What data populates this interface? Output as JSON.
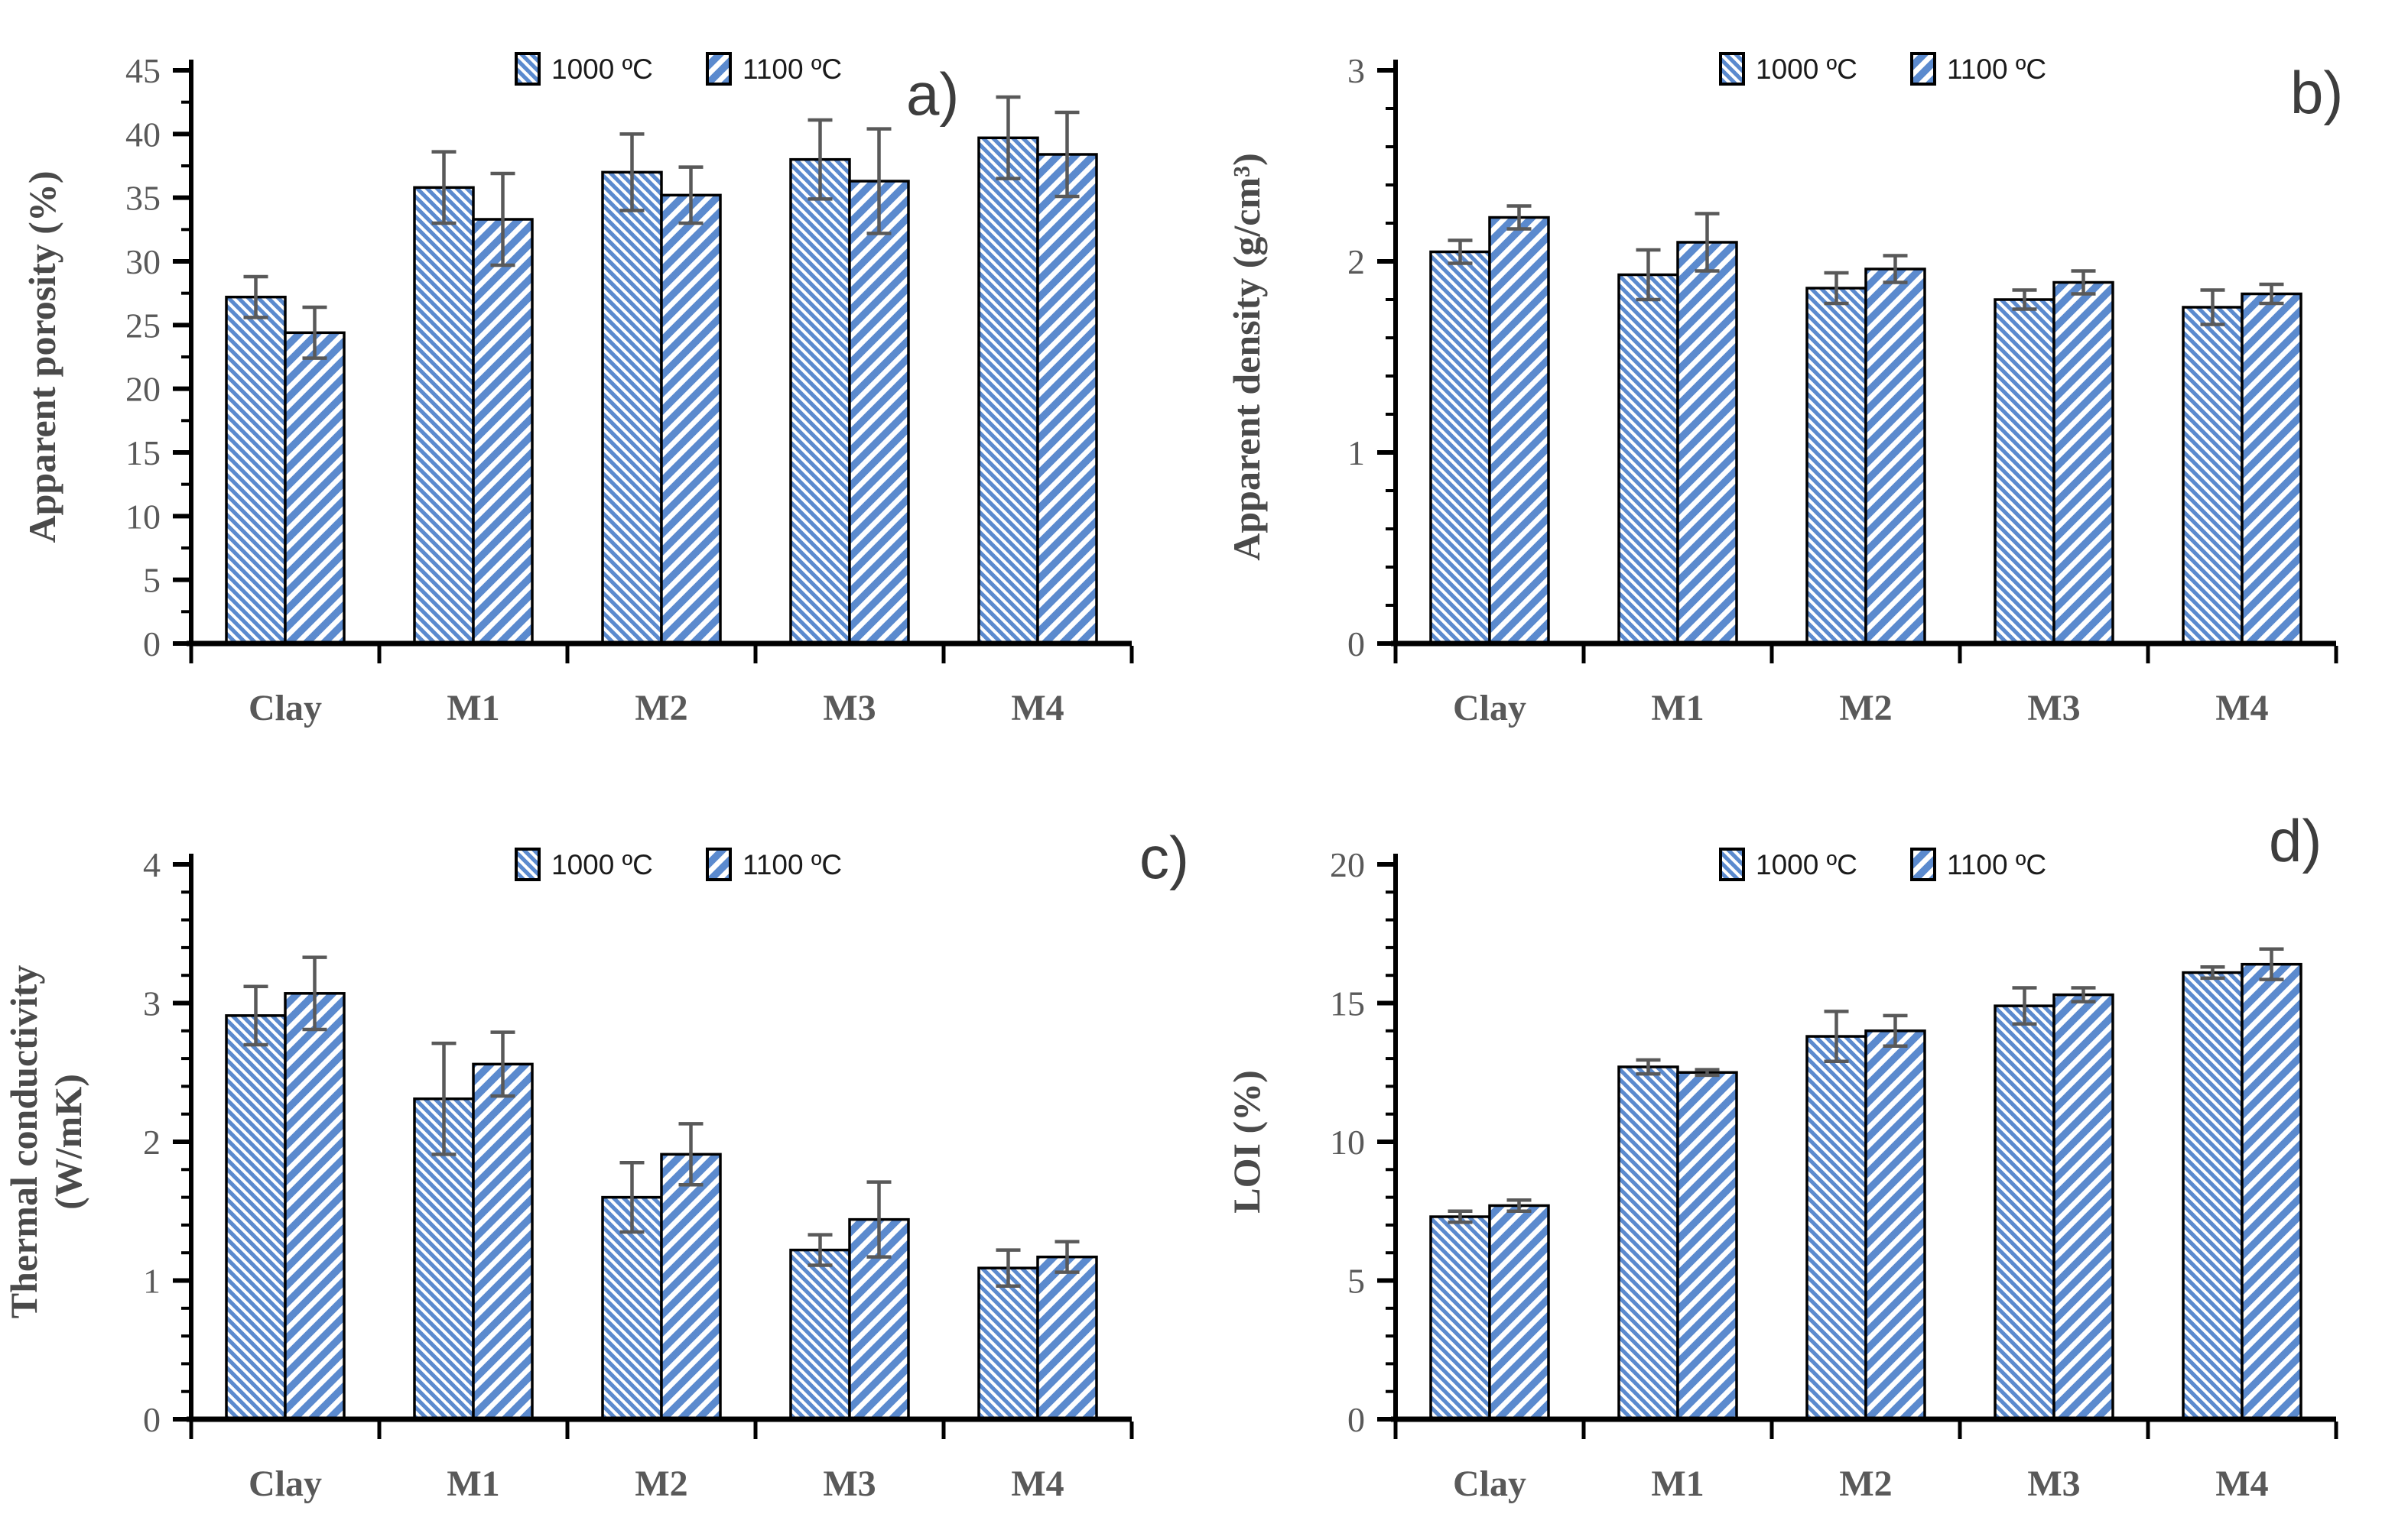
{
  "figure": {
    "background": "#ffffff",
    "categories": [
      "Clay",
      "M1",
      "M2",
      "M3",
      "M4"
    ],
    "legend": {
      "items": [
        {
          "label": "1000 ºC",
          "hatch": "thin-backslash"
        },
        {
          "label": "1100 ºC",
          "hatch": "thick-slash"
        }
      ]
    },
    "colors": {
      "hatch_blue": "#5b8ace",
      "bar_fill_background": "#ffffff",
      "bar_outline": "#000000",
      "error_bar": "#595959",
      "axis": "#000000",
      "tick_label": "#595959",
      "axis_title": "#4a4a4a",
      "panel_letter": "#3d3d3d"
    }
  },
  "chart_data": [
    {
      "id": "a",
      "type": "bar",
      "panel_label": "a)",
      "ylabel": "Apparent porosity (%)",
      "xlabel": "",
      "categories": [
        "Clay",
        "M1",
        "M2",
        "M3",
        "M4"
      ],
      "series": [
        {
          "name": "1000 ºC",
          "values": [
            27.2,
            35.8,
            37.0,
            38.0,
            39.7
          ],
          "errors": [
            1.6,
            2.8,
            3.0,
            3.1,
            3.2
          ]
        },
        {
          "name": "1100 ºC",
          "values": [
            24.4,
            33.3,
            35.2,
            36.3,
            38.4
          ],
          "errors": [
            2.0,
            3.6,
            2.2,
            4.1,
            3.3
          ]
        }
      ],
      "ylim": [
        0,
        45
      ],
      "ytick_major": 5,
      "ytick_minor": 2.5,
      "grid": false,
      "legend_position": "top-center"
    },
    {
      "id": "b",
      "type": "bar",
      "panel_label": "b)",
      "ylabel": "Apparent density (g/cm³)",
      "xlabel": "",
      "categories": [
        "Clay",
        "M1",
        "M2",
        "M3",
        "M4"
      ],
      "series": [
        {
          "name": "1000 ºC",
          "values": [
            2.05,
            1.93,
            1.86,
            1.8,
            1.76
          ],
          "errors": [
            0.06,
            0.13,
            0.08,
            0.05,
            0.09
          ]
        },
        {
          "name": "1100 ºC",
          "values": [
            2.23,
            2.1,
            1.96,
            1.89,
            1.83
          ],
          "errors": [
            0.06,
            0.15,
            0.07,
            0.06,
            0.05
          ]
        }
      ],
      "ylim": [
        0,
        3
      ],
      "ytick_major": 1,
      "ytick_minor": 0.2,
      "grid": false,
      "legend_position": "top-center"
    },
    {
      "id": "c",
      "type": "bar",
      "panel_label": "c)",
      "ylabel": "Thermal conductivity\n(W/mK)",
      "xlabel": "",
      "categories": [
        "Clay",
        "M1",
        "M2",
        "M3",
        "M4"
      ],
      "series": [
        {
          "name": "1000 ºC",
          "values": [
            2.91,
            2.31,
            1.6,
            1.22,
            1.09
          ],
          "errors": [
            0.21,
            0.4,
            0.25,
            0.11,
            0.13
          ]
        },
        {
          "name": "1100 ºC",
          "values": [
            3.07,
            2.56,
            1.91,
            1.44,
            1.17
          ],
          "errors": [
            0.26,
            0.23,
            0.22,
            0.27,
            0.11
          ]
        }
      ],
      "ylim": [
        0,
        4
      ],
      "ytick_major": 1,
      "ytick_minor": 0.2,
      "grid": false,
      "legend_position": "top-center"
    },
    {
      "id": "d",
      "type": "bar",
      "panel_label": "d)",
      "ylabel": "LOI (%)",
      "xlabel": "",
      "categories": [
        "Clay",
        "M1",
        "M2",
        "M3",
        "M4"
      ],
      "series": [
        {
          "name": "1000 ºC",
          "values": [
            7.3,
            12.7,
            13.8,
            14.9,
            16.1
          ],
          "errors": [
            0.2,
            0.25,
            0.9,
            0.65,
            0.2
          ]
        },
        {
          "name": "1100 ºC",
          "values": [
            7.7,
            12.5,
            14.0,
            15.3,
            16.4
          ],
          "errors": [
            0.2,
            0.1,
            0.55,
            0.25,
            0.55
          ]
        }
      ],
      "ylim": [
        0,
        20
      ],
      "ytick_major": 5,
      "ytick_minor": 1,
      "grid": false,
      "legend_position": "top-center"
    }
  ]
}
